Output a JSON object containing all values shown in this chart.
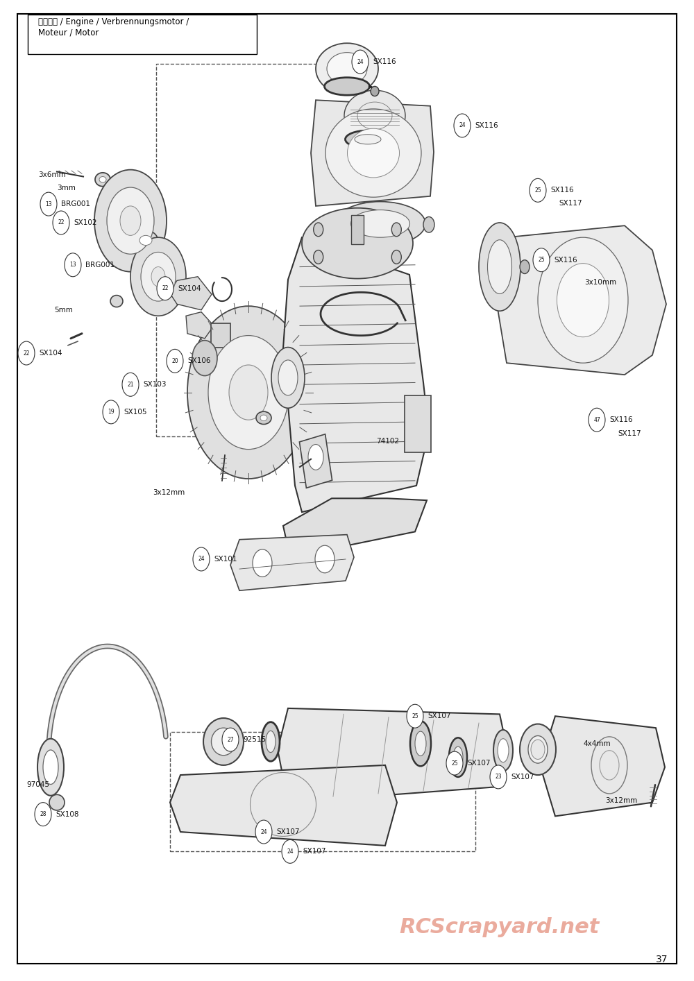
{
  "page_number": "37",
  "watermark": "RCScrapyard.net",
  "watermark_color": "#e8a090",
  "bg_color": "#ffffff",
  "border_color": "#000000",
  "title_line1": "エンジン / Engine / Verbrennungsmotor /",
  "title_line2": "Moteur / Motor",
  "figsize": [
    10.0,
    14.14
  ],
  "dpi": 100
}
